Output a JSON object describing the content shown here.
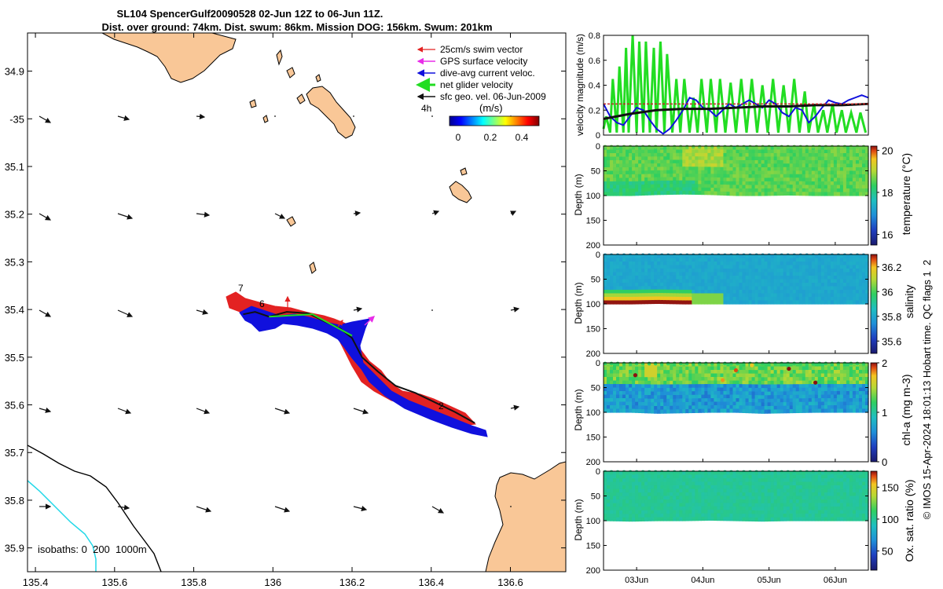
{
  "title": {
    "line1": "SL104 SpencerGulf20090528 02-Jun 12Z to 06-Jun 11Z.",
    "line2": "Dist. over ground: 74km. Dist. swum: 86km. Mission DOG: 156km. Swum: 201km"
  },
  "colors": {
    "land": "#f9c797",
    "swim_vector": "#e32222",
    "gps_velocity": "#e82de8",
    "dive_avg": "#1010dd",
    "net_velocity": "#22dd22",
    "geo_vel": "#111111",
    "isobath_200": "#000000",
    "isobath_1000": "#22d8e8"
  },
  "map": {
    "legend": {
      "swim": "25cm/s swim vector",
      "gps": "GPS surface velocity",
      "diveavg": "dive-avg current veloc.",
      "net": "net glider velocity",
      "geo": "sfc geo. vel. 06-Jun-2009"
    },
    "colorbar": {
      "header": "4h",
      "units": "(m/s)",
      "ticks": [
        "0",
        "0.2",
        "0.4"
      ]
    },
    "isobaths_text": "isobaths: 0  200  1000m",
    "day_labels": [
      "7",
      "6",
      "2"
    ],
    "xlim": [
      135.38,
      136.74
    ],
    "ylim": [
      35.95,
      34.82
    ],
    "x_ticks": [
      135.4,
      135.6,
      135.8,
      136,
      136.2,
      136.4,
      136.6
    ],
    "x_tick_labels": [
      "135.4",
      "135.6",
      "135.8",
      "136",
      "136.2",
      "136.4",
      "136.6"
    ],
    "y_ticks": [
      34.9,
      35,
      35.1,
      35.2,
      35.3,
      35.4,
      35.5,
      35.6,
      35.7,
      35.8,
      35.9
    ],
    "y_tick_labels": [
      "34.9",
      "-35",
      "35.1",
      "35.2",
      "35.3",
      "35.4",
      "35.5",
      "35.6",
      "35.7",
      "35.8",
      "35.9"
    ],
    "track": {
      "lon": [
        135.925,
        135.955,
        135.99,
        136.035,
        136.09,
        136.13,
        136.17,
        136.2,
        136.225,
        136.265,
        136.31,
        136.36,
        136.41,
        136.46,
        136.51
      ],
      "lat": [
        35.41,
        35.405,
        35.415,
        35.405,
        35.408,
        35.425,
        35.44,
        35.46,
        35.5,
        35.53,
        35.56,
        35.575,
        35.595,
        35.615,
        35.638
      ]
    },
    "net_vec": {
      "lon": [
        135.99,
        136.1,
        136.2
      ],
      "lat": [
        35.415,
        35.41,
        35.455
      ]
    }
  },
  "chart_data": [
    {
      "type": "line",
      "title": "",
      "ylabel": "velocity magnitude (m/s)",
      "ylim": [
        0,
        0.8
      ],
      "y_ticks": [
        "0",
        "0.2",
        "0.4",
        "0.6",
        "0.8"
      ],
      "xlim": [
        0,
        4
      ],
      "series": [
        {
          "name": "net glider velocity",
          "x": [
            0.0,
            0.04,
            0.1,
            0.14,
            0.2,
            0.24,
            0.3,
            0.34,
            0.38,
            0.44,
            0.5,
            0.54,
            0.6,
            0.64,
            0.7,
            0.76,
            0.8,
            0.86,
            0.92,
            0.96,
            1.04,
            1.1,
            1.16,
            1.22,
            1.3,
            1.36,
            1.42,
            1.48,
            1.56,
            1.62,
            1.7,
            1.76,
            1.84,
            1.92,
            2.0,
            2.08,
            2.16,
            2.24,
            2.32,
            2.4,
            2.48,
            2.56,
            2.64,
            2.72,
            2.8,
            2.88,
            2.96,
            3.04,
            3.1,
            3.18,
            3.24,
            3.32,
            3.38,
            3.46,
            3.52,
            3.6,
            3.66,
            3.74,
            3.82,
            3.88,
            3.96
          ],
          "values": [
            0.05,
            0.15,
            0.02,
            0.45,
            0.02,
            0.55,
            0.02,
            0.7,
            0.02,
            0.8,
            0.02,
            0.75,
            0.02,
            0.75,
            0.02,
            0.7,
            0.02,
            0.75,
            0.02,
            0.65,
            0.02,
            0.45,
            0.02,
            0.45,
            0.02,
            0.3,
            0.02,
            0.45,
            0.02,
            0.45,
            0.02,
            0.45,
            0.02,
            0.42,
            0.02,
            0.45,
            0.02,
            0.45,
            0.02,
            0.4,
            0.02,
            0.45,
            0.02,
            0.4,
            0.02,
            0.45,
            0.02,
            0.35,
            0.02,
            0.25,
            0.02,
            0.2,
            0.02,
            0.25,
            0.02,
            0.2,
            0.02,
            0.18,
            0.02,
            0.18,
            0.02
          ]
        },
        {
          "name": "dive-avg current veloc.",
          "x": [
            0.0,
            0.1,
            0.2,
            0.3,
            0.4,
            0.5,
            0.6,
            0.7,
            0.8,
            0.9,
            1.0,
            1.1,
            1.2,
            1.3,
            1.4,
            1.5,
            1.6,
            1.7,
            1.8,
            1.9,
            2.0,
            2.1,
            2.2,
            2.3,
            2.4,
            2.5,
            2.6,
            2.7,
            2.8,
            2.9,
            3.0,
            3.1,
            3.2,
            3.3,
            3.4,
            3.5,
            3.6,
            3.7,
            3.8,
            3.9,
            4.0
          ],
          "values": [
            0.25,
            0.15,
            0.1,
            0.08,
            0.15,
            0.22,
            0.2,
            0.12,
            0.05,
            0.01,
            0.05,
            0.12,
            0.2,
            0.3,
            0.28,
            0.22,
            0.2,
            0.15,
            0.2,
            0.25,
            0.22,
            0.25,
            0.28,
            0.25,
            0.22,
            0.28,
            0.25,
            0.18,
            0.15,
            0.22,
            0.2,
            0.1,
            0.15,
            0.22,
            0.28,
            0.26,
            0.25,
            0.28,
            0.3,
            0.32,
            0.3
          ]
        },
        {
          "name": "sfc geo. vel.",
          "x": [
            0,
            0.4,
            0.8,
            1.2,
            1.6,
            2.0,
            2.4,
            2.8,
            3.2,
            3.6,
            4.0
          ],
          "values": [
            0.13,
            0.17,
            0.2,
            0.21,
            0.21,
            0.22,
            0.23,
            0.23,
            0.24,
            0.24,
            0.25
          ]
        },
        {
          "name": "25cm/s swim vector",
          "x": [
            0,
            4
          ],
          "values": [
            0.25,
            0.25
          ]
        }
      ]
    },
    {
      "type": "heatmap",
      "variable": "temperature",
      "ylabel": "Depth (m)",
      "ylim": [
        0,
        200
      ],
      "y_ticks": [
        "0",
        "50",
        "100",
        "150",
        "200"
      ],
      "cbar_label": "temperature (°C)",
      "cbar_range": [
        15.5,
        20.2
      ],
      "cbar_ticks": [
        "16",
        "18",
        "20"
      ],
      "bottom_depth": [
        100,
        100,
        98,
        97,
        98,
        100,
        100,
        99,
        100,
        100,
        100
      ],
      "surface_value": 18.6,
      "deep_value": 18.2
    },
    {
      "type": "heatmap",
      "variable": "salinity",
      "ylabel": "Depth (m)",
      "ylim": [
        0,
        200
      ],
      "y_ticks": [
        "0",
        "50",
        "100",
        "150",
        "200"
      ],
      "cbar_label": "salinity",
      "cbar_range": [
        35.5,
        36.3
      ],
      "cbar_ticks": [
        "35.6",
        "35.8",
        "36",
        "36.2"
      ],
      "bottom_depth": [
        100,
        100,
        99,
        100,
        100,
        100,
        100,
        100,
        100,
        100,
        100
      ],
      "surface_value": 35.8,
      "deep_value": 36.3
    },
    {
      "type": "heatmap",
      "variable": "chl-a",
      "ylabel": "Depth (m)",
      "ylim": [
        0,
        200
      ],
      "y_ticks": [
        "0",
        "50",
        "100",
        "150",
        "200"
      ],
      "cbar_label": "chl-a (mg m-3)",
      "cbar_range": [
        0,
        2
      ],
      "cbar_ticks": [
        "0",
        "1",
        "2"
      ],
      "bottom_depth": [
        100,
        100,
        102,
        101,
        100,
        100,
        102,
        101,
        100,
        100,
        100
      ],
      "surface_value": 1.2,
      "deep_value": 0.6
    },
    {
      "type": "heatmap",
      "variable": "Ox. sat. ratio",
      "ylabel": "Depth (m)",
      "ylim": [
        0,
        200
      ],
      "y_ticks": [
        "0",
        "50",
        "100",
        "150",
        "200"
      ],
      "cbar_label": "Ox. sat. ratio (%)",
      "cbar_range": [
        20,
        175
      ],
      "cbar_ticks": [
        "50",
        "100",
        "150"
      ],
      "bottom_depth": [
        100,
        101,
        100,
        100,
        99,
        100,
        101,
        100,
        100,
        100,
        100
      ],
      "surface_value": 102,
      "deep_value": 100
    }
  ],
  "time_axis": {
    "labels": [
      "03Jun",
      "04Jun",
      "05Jun",
      "06Jun"
    ],
    "values": [
      0.5,
      1.5,
      2.5,
      3.5
    ],
    "range": [
      0,
      4
    ]
  },
  "credit": "© IMOS 15-Apr-2024 18:01:13 Hobart time. QC flags 1  2"
}
